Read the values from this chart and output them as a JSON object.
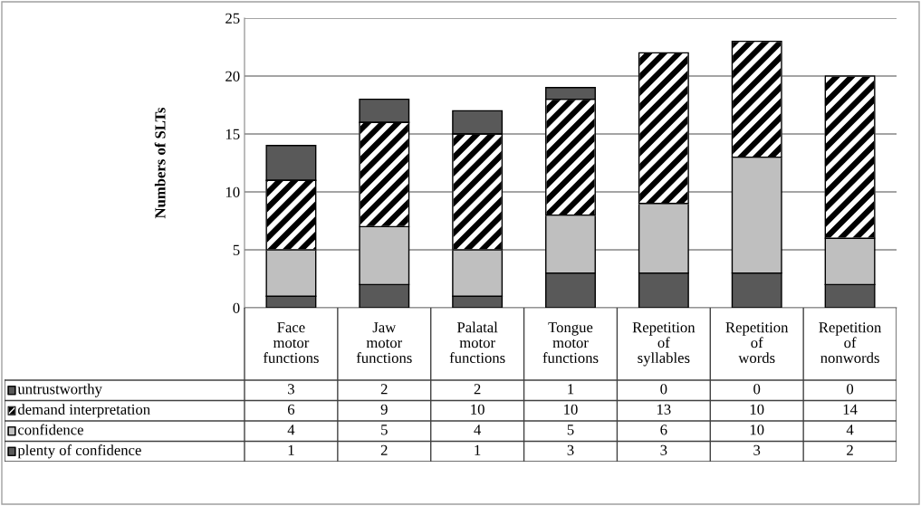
{
  "chart_data": {
    "type": "bar",
    "stacked": true,
    "ylabel": "Numbers of SLTs",
    "categories": [
      "Face motor functions",
      "Jaw motor functions",
      "Palatal motor functions",
      "Tongue motor functions",
      "Repetition of syllables",
      "Repetition of words",
      "Repetition of nonwords"
    ],
    "series": [
      {
        "name": "plenty of confidence",
        "color": "#595959",
        "values": [
          1,
          2,
          1,
          3,
          3,
          3,
          2
        ]
      },
      {
        "name": "confidence",
        "color": "#bfbfbf",
        "values": [
          4,
          5,
          4,
          5,
          6,
          10,
          4
        ]
      },
      {
        "name": "demand interpretation",
        "color": "#000000",
        "values": [
          6,
          9,
          10,
          10,
          13,
          10,
          14
        ]
      },
      {
        "name": "untrustworthy",
        "color": "#595959",
        "values": [
          3,
          2,
          2,
          1,
          0,
          0,
          0
        ]
      }
    ],
    "ylim": [
      0,
      25
    ],
    "yticks": [
      0,
      5,
      10,
      15,
      20,
      25
    ],
    "grid": "y",
    "data_labels": true,
    "legend": "bottom"
  }
}
